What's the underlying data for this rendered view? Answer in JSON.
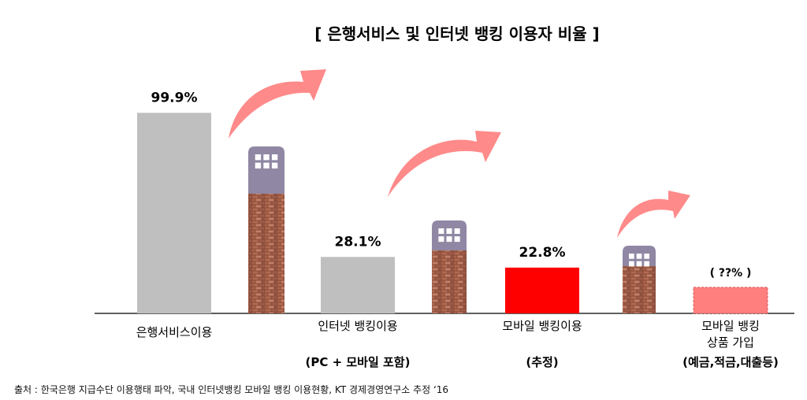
{
  "title": "[ 은행서비스 및 인터넷 뱅킹 이용자 비율 ]",
  "source": "출처 : 한국은행 지급수단 이용행태 파악, 국내 인터넷뱅킹 모바일 뱅킹 이용현황, KT 경제경영연구소 추정 ‘16",
  "colors": {
    "bar_gray": "#bfbfbf",
    "bar_red": "#ff0000",
    "bar_pink": "#ff7f7f",
    "arrow": "#ff8a8a",
    "building": "#8f87a3",
    "brick": "#a0604a"
  },
  "chart_data": {
    "type": "bar",
    "ylim": [
      0,
      100
    ],
    "categories": [
      [
        "은행서비스이용"
      ],
      [
        "인터넷 뱅킹이용",
        "",
        "(PC + 모바일 포함)"
      ],
      [
        "모바일 뱅킹이용",
        "",
        "(추정)"
      ],
      [
        "모바일 뱅킹",
        "상품 가입",
        "(예금,적금,대출등)"
      ]
    ],
    "values": [
      99.9,
      28.1,
      22.8,
      13.0
    ],
    "value_labels": [
      "99.9%",
      "28.1%",
      "22.8%",
      "( ??% )"
    ],
    "bar_styles": [
      "gray",
      "gray",
      "red",
      "pink-dashed"
    ]
  }
}
